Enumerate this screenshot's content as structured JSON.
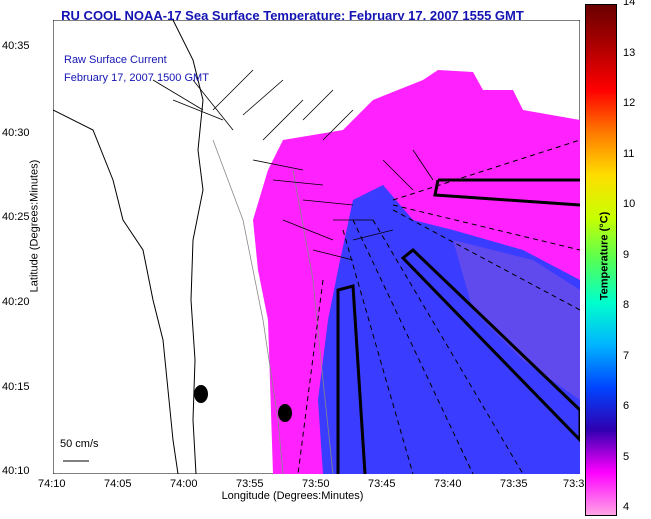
{
  "title": "RU COOL  NOAA-17  Sea Surface Temperature:  February 17, 2007 1555 GMT",
  "info": {
    "line1": "Raw Surface Current",
    "line2": "February 17, 2007 1500 GMT"
  },
  "scale_label": "50 cm/s",
  "axes": {
    "xlabel": "Longitude (Degrees:Minutes)",
    "ylabel": "Latitude (Degrees:Minutes)",
    "xticks": [
      "74:10",
      "74:05",
      "74:00",
      "73:55",
      "73:50",
      "73:45",
      "73:40",
      "73:35",
      "73:3"
    ],
    "yticks": [
      "40:35",
      "40:30",
      "40:25",
      "40:20",
      "40:15",
      "40:10"
    ]
  },
  "colorbar": {
    "title": "Temperature (°C)",
    "ticks": [
      "14",
      "13",
      "12",
      "11",
      "10",
      "9",
      "8",
      "7",
      "6",
      "5",
      "4"
    ],
    "colors": [
      "#6a0000",
      "#b00000",
      "#ff0000",
      "#ff7a00",
      "#ffdd00",
      "#c8ff00",
      "#55ff55",
      "#00ffcc",
      "#00b4ff",
      "#0044ff",
      "#3000b0",
      "#ff00ff",
      "#ffa6e6"
    ]
  }
}
